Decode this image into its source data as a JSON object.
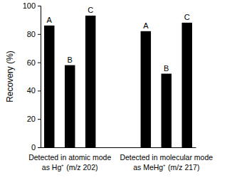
{
  "chart_data": {
    "type": "bar",
    "y_label": "Recovery (%)",
    "categories": [
      "Detected in atomic mode\nas Hg⁺ (m/z 202)",
      "Detected in molecular mode\nas MeHg⁺ (m/z 217)"
    ],
    "series": [
      {
        "name": "A",
        "color": "#000000",
        "values": [
          86,
          82
        ]
      },
      {
        "name": "B",
        "color": "#000000",
        "values": [
          58,
          52
        ]
      },
      {
        "name": "C",
        "color": "#000000",
        "values": [
          93,
          88
        ]
      }
    ],
    "ylim": [
      0,
      100
    ],
    "yticks": [
      0,
      20,
      40,
      60,
      80,
      100
    ],
    "grid": false
  }
}
